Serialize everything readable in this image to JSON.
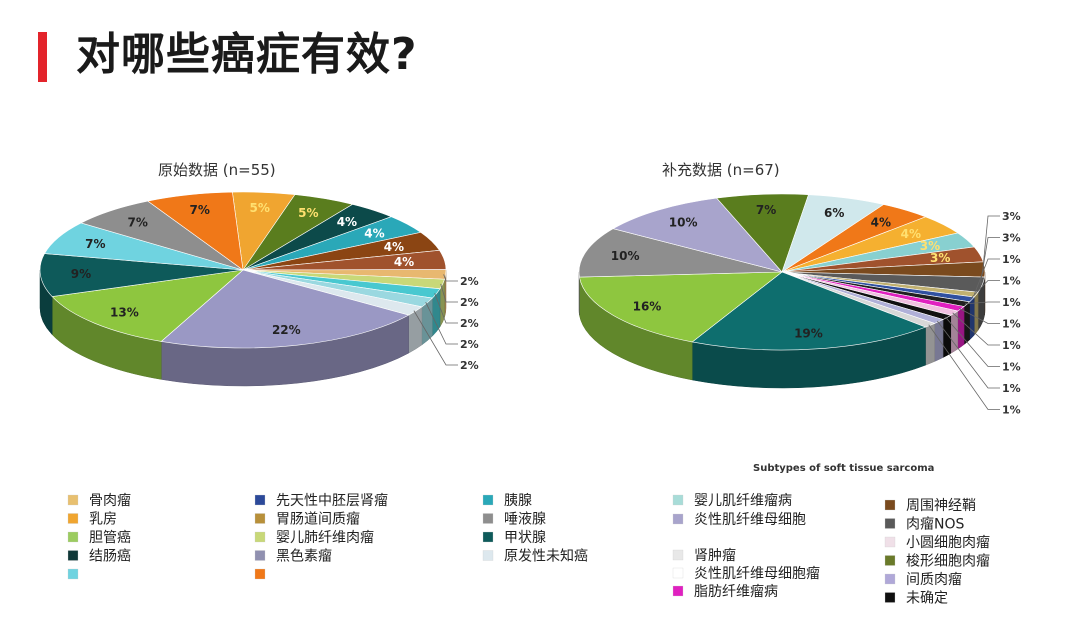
{
  "page": {
    "title": "对哪些癌症有效?",
    "accent_color": "#e3242b"
  },
  "chart_data": [
    {
      "type": "pie",
      "title": "原始数据 (n=55)",
      "slices": [
        {
          "label": "5%",
          "value": 5,
          "color": "#f0a530",
          "label_color": "#ffe070"
        },
        {
          "label": "5%",
          "value": 5,
          "color": "#5a7d1e",
          "label_color": "#ffe070"
        },
        {
          "label": "4%",
          "value": 4,
          "color": "#0c4a4a",
          "label_color": "#ffffff"
        },
        {
          "label": "4%",
          "value": 4,
          "color": "#2aa8b8",
          "label_color": "#ffffff"
        },
        {
          "label": "4%",
          "value": 4,
          "color": "#8b4513",
          "label_color": "#ffffff"
        },
        {
          "label": "4%",
          "value": 4,
          "color": "#a0522d",
          "label_color": "#ffffff"
        },
        {
          "label": "2%",
          "value": 2,
          "color": "#e8b870",
          "outside": true
        },
        {
          "label": "2%",
          "value": 2,
          "color": "#c8d878",
          "outside": true
        },
        {
          "label": "2%",
          "value": 2,
          "color": "#48c8d0",
          "outside": true
        },
        {
          "label": "2%",
          "value": 2,
          "color": "#9ad8e0",
          "outside": true
        },
        {
          "label": "2%",
          "value": 2,
          "color": "#dde8ee",
          "outside": true
        },
        {
          "label": "22%",
          "value": 22,
          "color": "#9a98c4",
          "label_color": "#222222"
        },
        {
          "label": "13%",
          "value": 13,
          "color": "#8ec63f",
          "label_color": "#222222"
        },
        {
          "label": "9%",
          "value": 9,
          "color": "#0e5a5a",
          "label_color": "#222222"
        },
        {
          "label": "7%",
          "value": 7,
          "color": "#6fd3e0",
          "label_color": "#222222"
        },
        {
          "label": "7%",
          "value": 7,
          "color": "#8e8e8e",
          "label_color": "#222222"
        },
        {
          "label": "7%",
          "value": 7,
          "color": "#f07818",
          "label_color": "#222222"
        }
      ]
    },
    {
      "type": "pie",
      "title": "补充数据 (n=67)",
      "subtitle": "Subtypes of soft tissue sarcoma",
      "slices": [
        {
          "label": "4%",
          "value": 4,
          "color": "#f07818",
          "label_color": "#222222"
        },
        {
          "label": "4%",
          "value": 4,
          "color": "#f5b030",
          "label_color": "#ffe070"
        },
        {
          "label": "3%",
          "value": 3,
          "color": "#88d0d0",
          "label_color": "#ffe070"
        },
        {
          "label": "3%",
          "value": 3,
          "color": "#a0522d",
          "label_color": "#ffe070"
        },
        {
          "label": "3%",
          "value": 3,
          "color": "#7a4a1e",
          "outside": true
        },
        {
          "label": "3%",
          "value": 3,
          "color": "#5a5a5a",
          "outside": true
        },
        {
          "label": "1%",
          "value": 1,
          "color": "#c0b070",
          "outside": true
        },
        {
          "label": "1%",
          "value": 1,
          "color": "#3050a0",
          "outside": true
        },
        {
          "label": "1%",
          "value": 1,
          "color": "#202020",
          "outside": true
        },
        {
          "label": "1%",
          "value": 1,
          "color": "#e020c0",
          "outside": true
        },
        {
          "label": "1%",
          "value": 1,
          "color": "#f0c0e0",
          "outside": true
        },
        {
          "label": "1%",
          "value": 1,
          "color": "#101010",
          "outside": true
        },
        {
          "label": "1%",
          "value": 1,
          "color": "#b0b0d8",
          "outside": true
        },
        {
          "label": "1%",
          "value": 1,
          "color": "#d8d8d8",
          "outside": true
        },
        {
          "label": "19%",
          "value": 19,
          "color": "#0e6e6e",
          "label_color": "#222222"
        },
        {
          "label": "16%",
          "value": 16,
          "color": "#8ec63f",
          "label_color": "#222222"
        },
        {
          "label": "10%",
          "value": 10,
          "color": "#8e8e8e",
          "label_color": "#222222"
        },
        {
          "label": "10%",
          "value": 10,
          "color": "#a8a4cc",
          "label_color": "#222222"
        },
        {
          "label": "7%",
          "value": 7,
          "color": "#5a7d1e",
          "label_color": "#222222"
        },
        {
          "label": "6%",
          "value": 6,
          "color": "#d0e8ec",
          "label_color": "#222222"
        }
      ]
    }
  ],
  "legend_left": [
    {
      "text": "骨肉瘤",
      "color": "#e8c070"
    },
    {
      "text": "乳房",
      "color": "#f0a530"
    },
    {
      "text": "胆管癌",
      "color": "#9ccc60"
    },
    {
      "text": "结肠癌",
      "color": "#103838"
    },
    {
      "text": "",
      "color": "#6fd3e0"
    },
    {
      "text": "先天性中胚层肾瘤",
      "color": "#2c4a9a"
    },
    {
      "text": "胃肠道间质瘤",
      "color": "#b8903a"
    },
    {
      "text": "婴儿肺纤维肉瘤",
      "color": "#c8d878"
    },
    {
      "text": "黑色素瘤",
      "color": "#9090b0"
    },
    {
      "text": "",
      "color": "#f07818"
    },
    {
      "text": "胰腺",
      "color": "#2aa8b8"
    },
    {
      "text": "唾液腺",
      "color": "#8e8e8e"
    },
    {
      "text": "甲状腺",
      "color": "#0e5a5a"
    },
    {
      "text": "原发性未知癌",
      "color": "#dde8ee"
    }
  ],
  "legend_right": [
    {
      "text": "婴儿肌纤维瘤病",
      "color": "#a8dcd8"
    },
    {
      "text": "炎性肌纤维母细胞",
      "color": "#a8a4cc"
    },
    {
      "text": "肾肿瘤",
      "color": "#e8e8e8"
    },
    {
      "text": "炎性肌纤维母细胞瘤",
      "color": "#ffffff"
    },
    {
      "text": "脂肪纤维瘤病",
      "color": "#e020c0"
    },
    {
      "text": "周围神经鞘",
      "color": "#7a4a1e"
    },
    {
      "text": "肉瘤NOS",
      "color": "#5a5a5a"
    },
    {
      "text": "小圆细胞肉瘤",
      "color": "#f0e0e8"
    },
    {
      "text": "梭形细胞肉瘤",
      "color": "#6a7a2a"
    },
    {
      "text": "间质肉瘤",
      "color": "#b0a8d8"
    },
    {
      "text": "未确定",
      "color": "#101010"
    }
  ]
}
